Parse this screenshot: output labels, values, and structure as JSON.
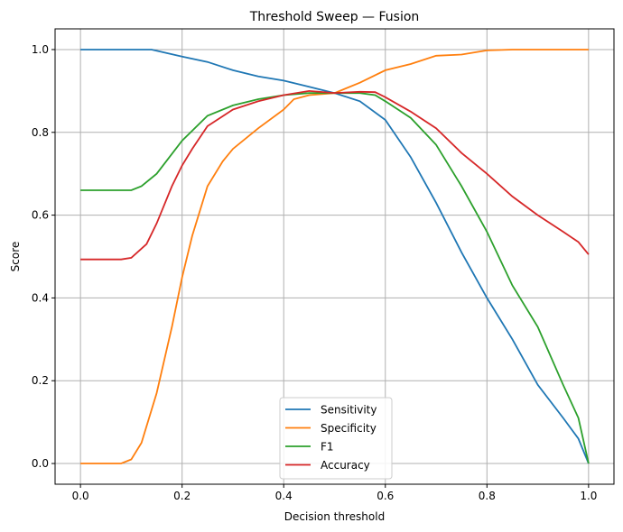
{
  "chart_data": {
    "type": "line",
    "title": "Threshold Sweep — Fusion",
    "xlabel": "Decision threshold",
    "ylabel": "Score",
    "xlim": [
      -0.05,
      1.05
    ],
    "ylim": [
      -0.05,
      1.05
    ],
    "xticks": [
      "0.0",
      "0.2",
      "0.4",
      "0.6",
      "0.8",
      "1.0"
    ],
    "yticks": [
      "0.0",
      "0.2",
      "0.4",
      "0.6",
      "0.8",
      "1.0"
    ],
    "grid": true,
    "legend_position": "lower center",
    "series": [
      {
        "name": "Sensitivity",
        "color": "#1f77b4",
        "x": [
          0,
          0.14,
          0.2,
          0.25,
          0.3,
          0.35,
          0.4,
          0.45,
          0.5,
          0.55,
          0.6,
          0.65,
          0.7,
          0.75,
          0.8,
          0.85,
          0.9,
          0.95,
          0.98,
          1.0
        ],
        "y": [
          1.0,
          1.0,
          0.983,
          0.97,
          0.95,
          0.935,
          0.925,
          0.91,
          0.895,
          0.875,
          0.83,
          0.74,
          0.63,
          0.51,
          0.4,
          0.3,
          0.19,
          0.11,
          0.06,
          0.0
        ]
      },
      {
        "name": "Specificity",
        "color": "#ff7f0e",
        "x": [
          0,
          0.08,
          0.1,
          0.12,
          0.15,
          0.18,
          0.2,
          0.22,
          0.25,
          0.28,
          0.3,
          0.35,
          0.4,
          0.42,
          0.45,
          0.5,
          0.55,
          0.6,
          0.65,
          0.7,
          0.75,
          0.8,
          0.85,
          1.0
        ],
        "y": [
          0,
          0,
          0.01,
          0.05,
          0.17,
          0.33,
          0.45,
          0.55,
          0.67,
          0.73,
          0.76,
          0.81,
          0.855,
          0.88,
          0.89,
          0.895,
          0.92,
          0.95,
          0.965,
          0.985,
          0.988,
          0.998,
          1.0,
          1.0
        ]
      },
      {
        "name": "F1",
        "color": "#2ca02c",
        "x": [
          0,
          0.1,
          0.12,
          0.15,
          0.2,
          0.25,
          0.3,
          0.35,
          0.4,
          0.45,
          0.5,
          0.55,
          0.58,
          0.6,
          0.65,
          0.7,
          0.75,
          0.8,
          0.85,
          0.9,
          0.95,
          0.98,
          1.0
        ],
        "y": [
          0.66,
          0.66,
          0.67,
          0.7,
          0.78,
          0.84,
          0.865,
          0.88,
          0.89,
          0.895,
          0.895,
          0.895,
          0.89,
          0.875,
          0.835,
          0.77,
          0.67,
          0.56,
          0.43,
          0.33,
          0.19,
          0.11,
          0.0
        ]
      },
      {
        "name": "Accuracy",
        "color": "#d62728",
        "x": [
          0,
          0.08,
          0.1,
          0.13,
          0.15,
          0.18,
          0.2,
          0.22,
          0.25,
          0.3,
          0.35,
          0.4,
          0.45,
          0.5,
          0.55,
          0.58,
          0.6,
          0.65,
          0.7,
          0.75,
          0.8,
          0.85,
          0.9,
          0.95,
          0.98,
          1.0
        ],
        "y": [
          0.493,
          0.493,
          0.497,
          0.53,
          0.58,
          0.67,
          0.72,
          0.76,
          0.815,
          0.855,
          0.875,
          0.89,
          0.9,
          0.895,
          0.898,
          0.897,
          0.885,
          0.85,
          0.81,
          0.75,
          0.7,
          0.645,
          0.6,
          0.56,
          0.535,
          0.505
        ]
      }
    ]
  }
}
